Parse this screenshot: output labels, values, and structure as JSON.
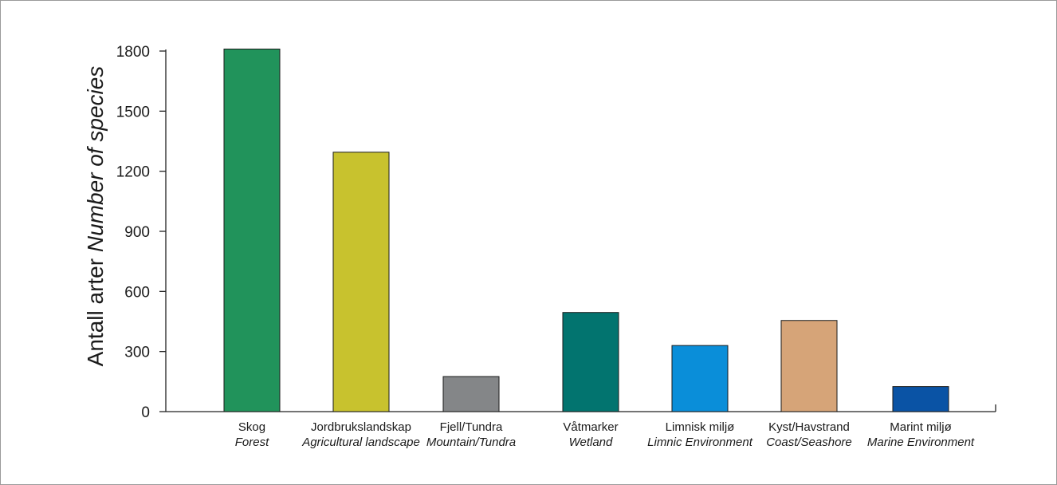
{
  "chart_data": {
    "type": "bar",
    "title": "",
    "ylabel": "Antall arter",
    "ylabel_italic": "Number of species",
    "xlabel": "",
    "ylim": [
      0,
      1800
    ],
    "yticks": [
      0,
      300,
      600,
      900,
      1200,
      1500,
      1800
    ],
    "grid": false,
    "categories": [
      {
        "label": "Skog",
        "sublabel": "Forest"
      },
      {
        "label": "Jordbrukslandskap",
        "sublabel": "Agricultural landscape"
      },
      {
        "label": "Fjell/Tundra",
        "sublabel": "Mountain/Tundra"
      },
      {
        "label": "Våtmarker",
        "sublabel": "Wetland"
      },
      {
        "label": "Limnisk miljø",
        "sublabel": "Limnic Environment"
      },
      {
        "label": "Kyst/Havstrand",
        "sublabel": "Coast/Seashore"
      },
      {
        "label": "Marint miljø",
        "sublabel": "Marine Environment"
      }
    ],
    "values": [
      1810,
      1295,
      175,
      495,
      330,
      455,
      125
    ],
    "colors": [
      "#21935b",
      "#c8c22e",
      "#848688",
      "#02746f",
      "#0a8ed9",
      "#d6a478",
      "#0a53a5"
    ]
  }
}
